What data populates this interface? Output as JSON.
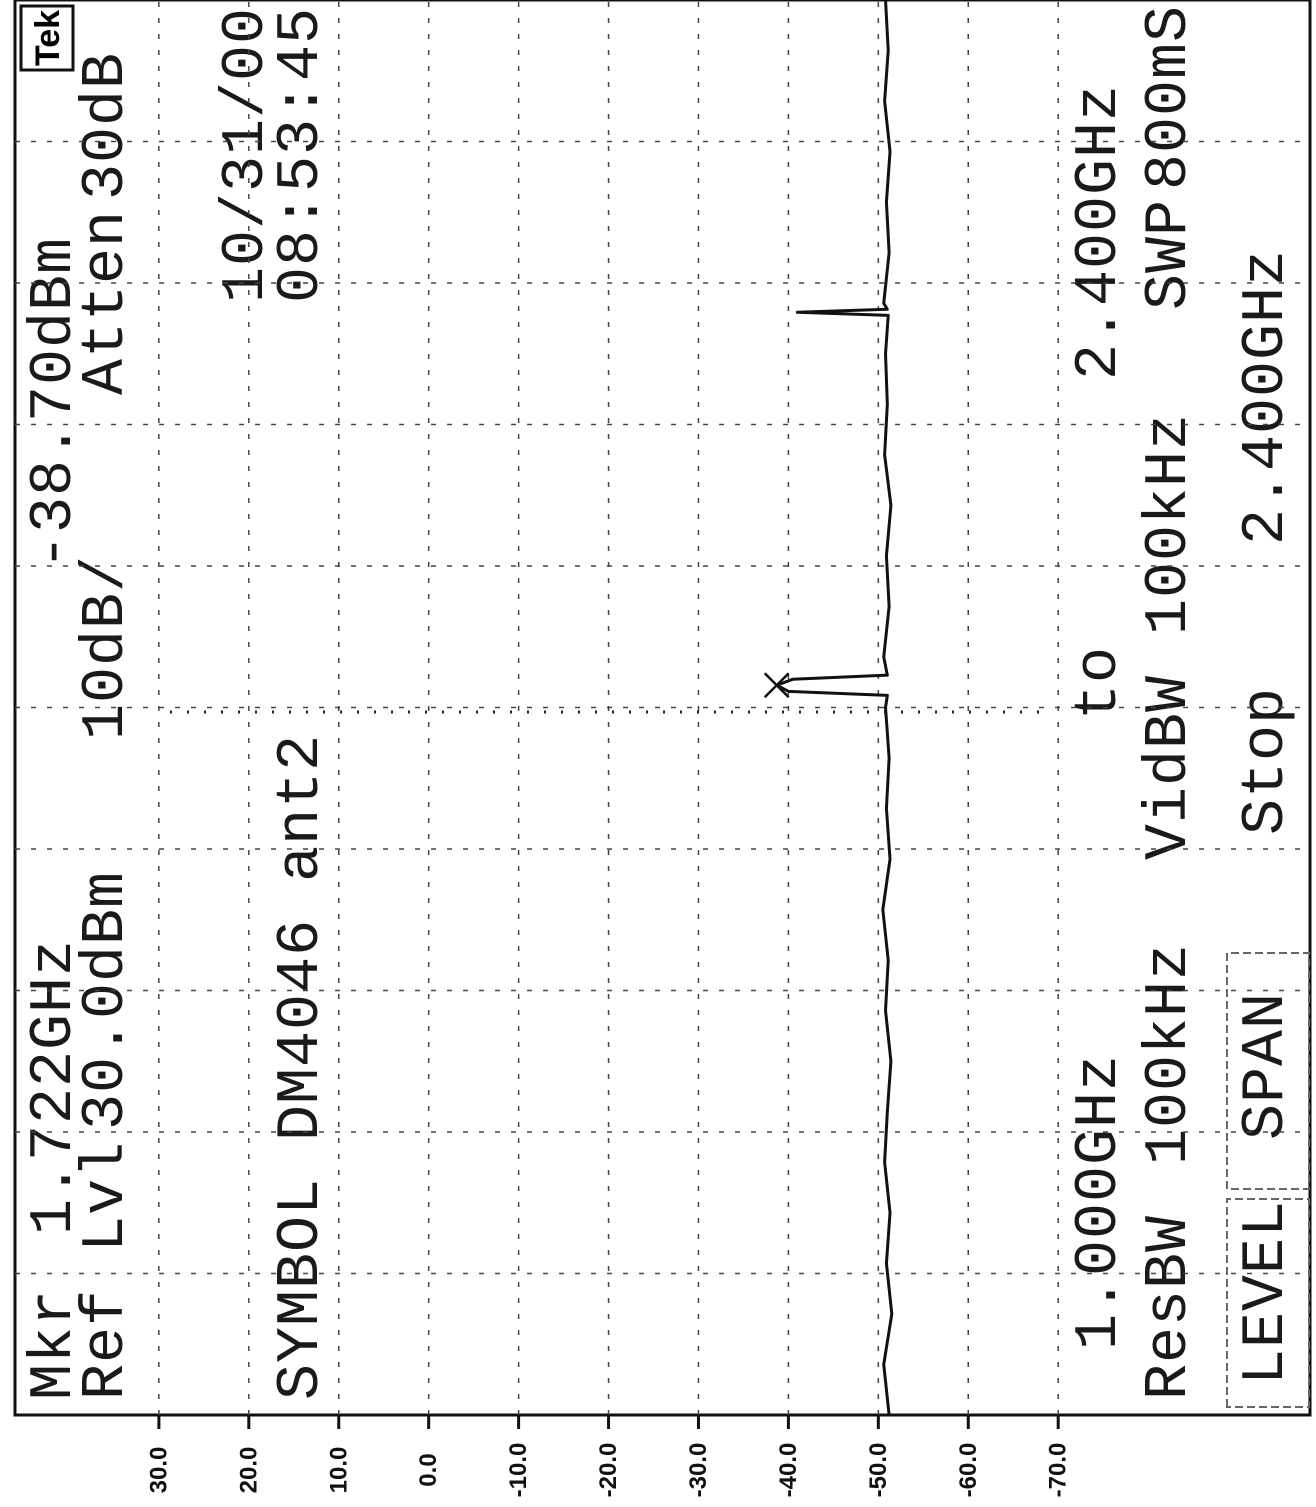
{
  "chart_data": {
    "type": "line",
    "logo": "Tek",
    "annotations": [
      "Mkr",
      "1.722GHz",
      "-38.70dBm",
      "Ref Lvl",
      "30.0dBm",
      "10dB/",
      "Atten",
      "30dB",
      "SYMBOL DM4046 ant2",
      "10/31/00",
      "08:53:45",
      "1.000GHz",
      "to",
      "2.400GHz",
      "ResBW",
      "100kHz",
      "VidBW",
      "100kHz",
      "SWP",
      "800mS",
      "LEVEL",
      "SPAN",
      "Stop",
      "2.400GHz"
    ],
    "x": [
      1.0,
      1.05,
      1.1,
      1.15,
      1.2,
      1.25,
      1.3,
      1.35,
      1.4,
      1.45,
      1.5,
      1.55,
      1.6,
      1.65,
      1.7,
      1.712,
      1.716,
      1.722,
      1.728,
      1.732,
      1.75,
      1.8,
      1.85,
      1.9,
      1.95,
      2.0,
      2.05,
      2.088,
      2.091,
      2.094,
      2.1,
      2.15,
      2.2,
      2.25,
      2.3,
      2.35,
      2.4
    ],
    "series": [
      {
        "color": "#111111",
        "values": [
          -51.2,
          -50.6,
          -51.5,
          -50.9,
          -51.3,
          -50.7,
          -51.0,
          -51.4,
          -50.8,
          -51.1,
          -50.5,
          -51.3,
          -50.9,
          -51.2,
          -50.8,
          -51.0,
          -40.0,
          -38.7,
          -40.5,
          -51.0,
          -50.6,
          -51.2,
          -50.9,
          -51.4,
          -50.7,
          -51.0,
          -50.8,
          -51.1,
          -41.0,
          -51.0,
          -50.6,
          -51.2,
          -50.9,
          -51.3,
          -50.7,
          -51.1,
          -50.8
        ]
      }
    ],
    "xlim": [
      1.0,
      2.4
    ],
    "ylim": [
      -98,
      46
    ],
    "yticks": [
      {
        "value": 30,
        "label": "30.0"
      },
      {
        "value": 20,
        "label": "20.0"
      },
      {
        "value": 10,
        "label": "10.0"
      },
      {
        "value": 0,
        "label": "0.0"
      },
      {
        "value": -10,
        "label": "-10.0"
      },
      {
        "value": -20,
        "label": "-20.0"
      },
      {
        "value": -30,
        "label": "-30.0"
      },
      {
        "value": -40,
        "label": "-40.0"
      },
      {
        "value": -50,
        "label": "-50.0"
      },
      {
        "value": -60,
        "label": "-60.0"
      },
      {
        "value": -70,
        "label": "-70.0"
      }
    ],
    "grid": true
  }
}
